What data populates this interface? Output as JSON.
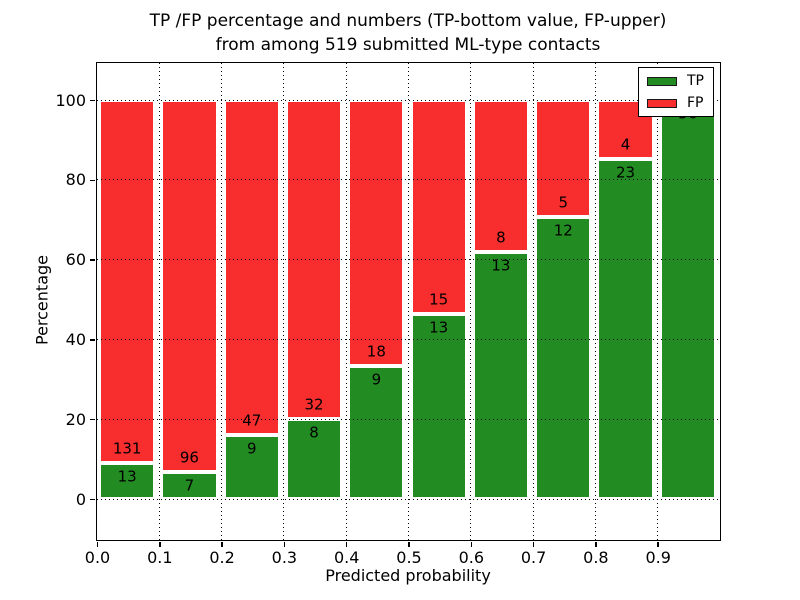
{
  "chart_data": {
    "type": "bar",
    "stacked": true,
    "normalized_to_percent": true,
    "title_line1": "TP /FP percentage and numbers (TP-bottom value, FP-upper)",
    "title_line2": "from among 519 submitted ML-type contacts",
    "xlabel": "Predicted probability",
    "ylabel": "Percentage",
    "categories": [
      "0.0",
      "0.1",
      "0.2",
      "0.3",
      "0.4",
      "0.5",
      "0.6",
      "0.7",
      "0.8",
      "0.9"
    ],
    "series": [
      {
        "name": "TP",
        "color": "#228b22",
        "counts": [
          13,
          7,
          9,
          8,
          9,
          13,
          13,
          12,
          23,
          56
        ]
      },
      {
        "name": "FP",
        "color": "#f82d2d",
        "counts": [
          131,
          96,
          47,
          32,
          18,
          15,
          8,
          5,
          4,
          0
        ]
      }
    ],
    "total_contacts": 519,
    "yticks": [
      0,
      20,
      40,
      60,
      80,
      100
    ],
    "ytick_labels": [
      "0",
      "20",
      "40",
      "60",
      "80",
      "100"
    ],
    "ylim": [
      -10,
      109
    ],
    "grid_style": "dotted",
    "legend_position": "upper right",
    "axis_color": "#000000",
    "background_color": "#ffffff"
  }
}
